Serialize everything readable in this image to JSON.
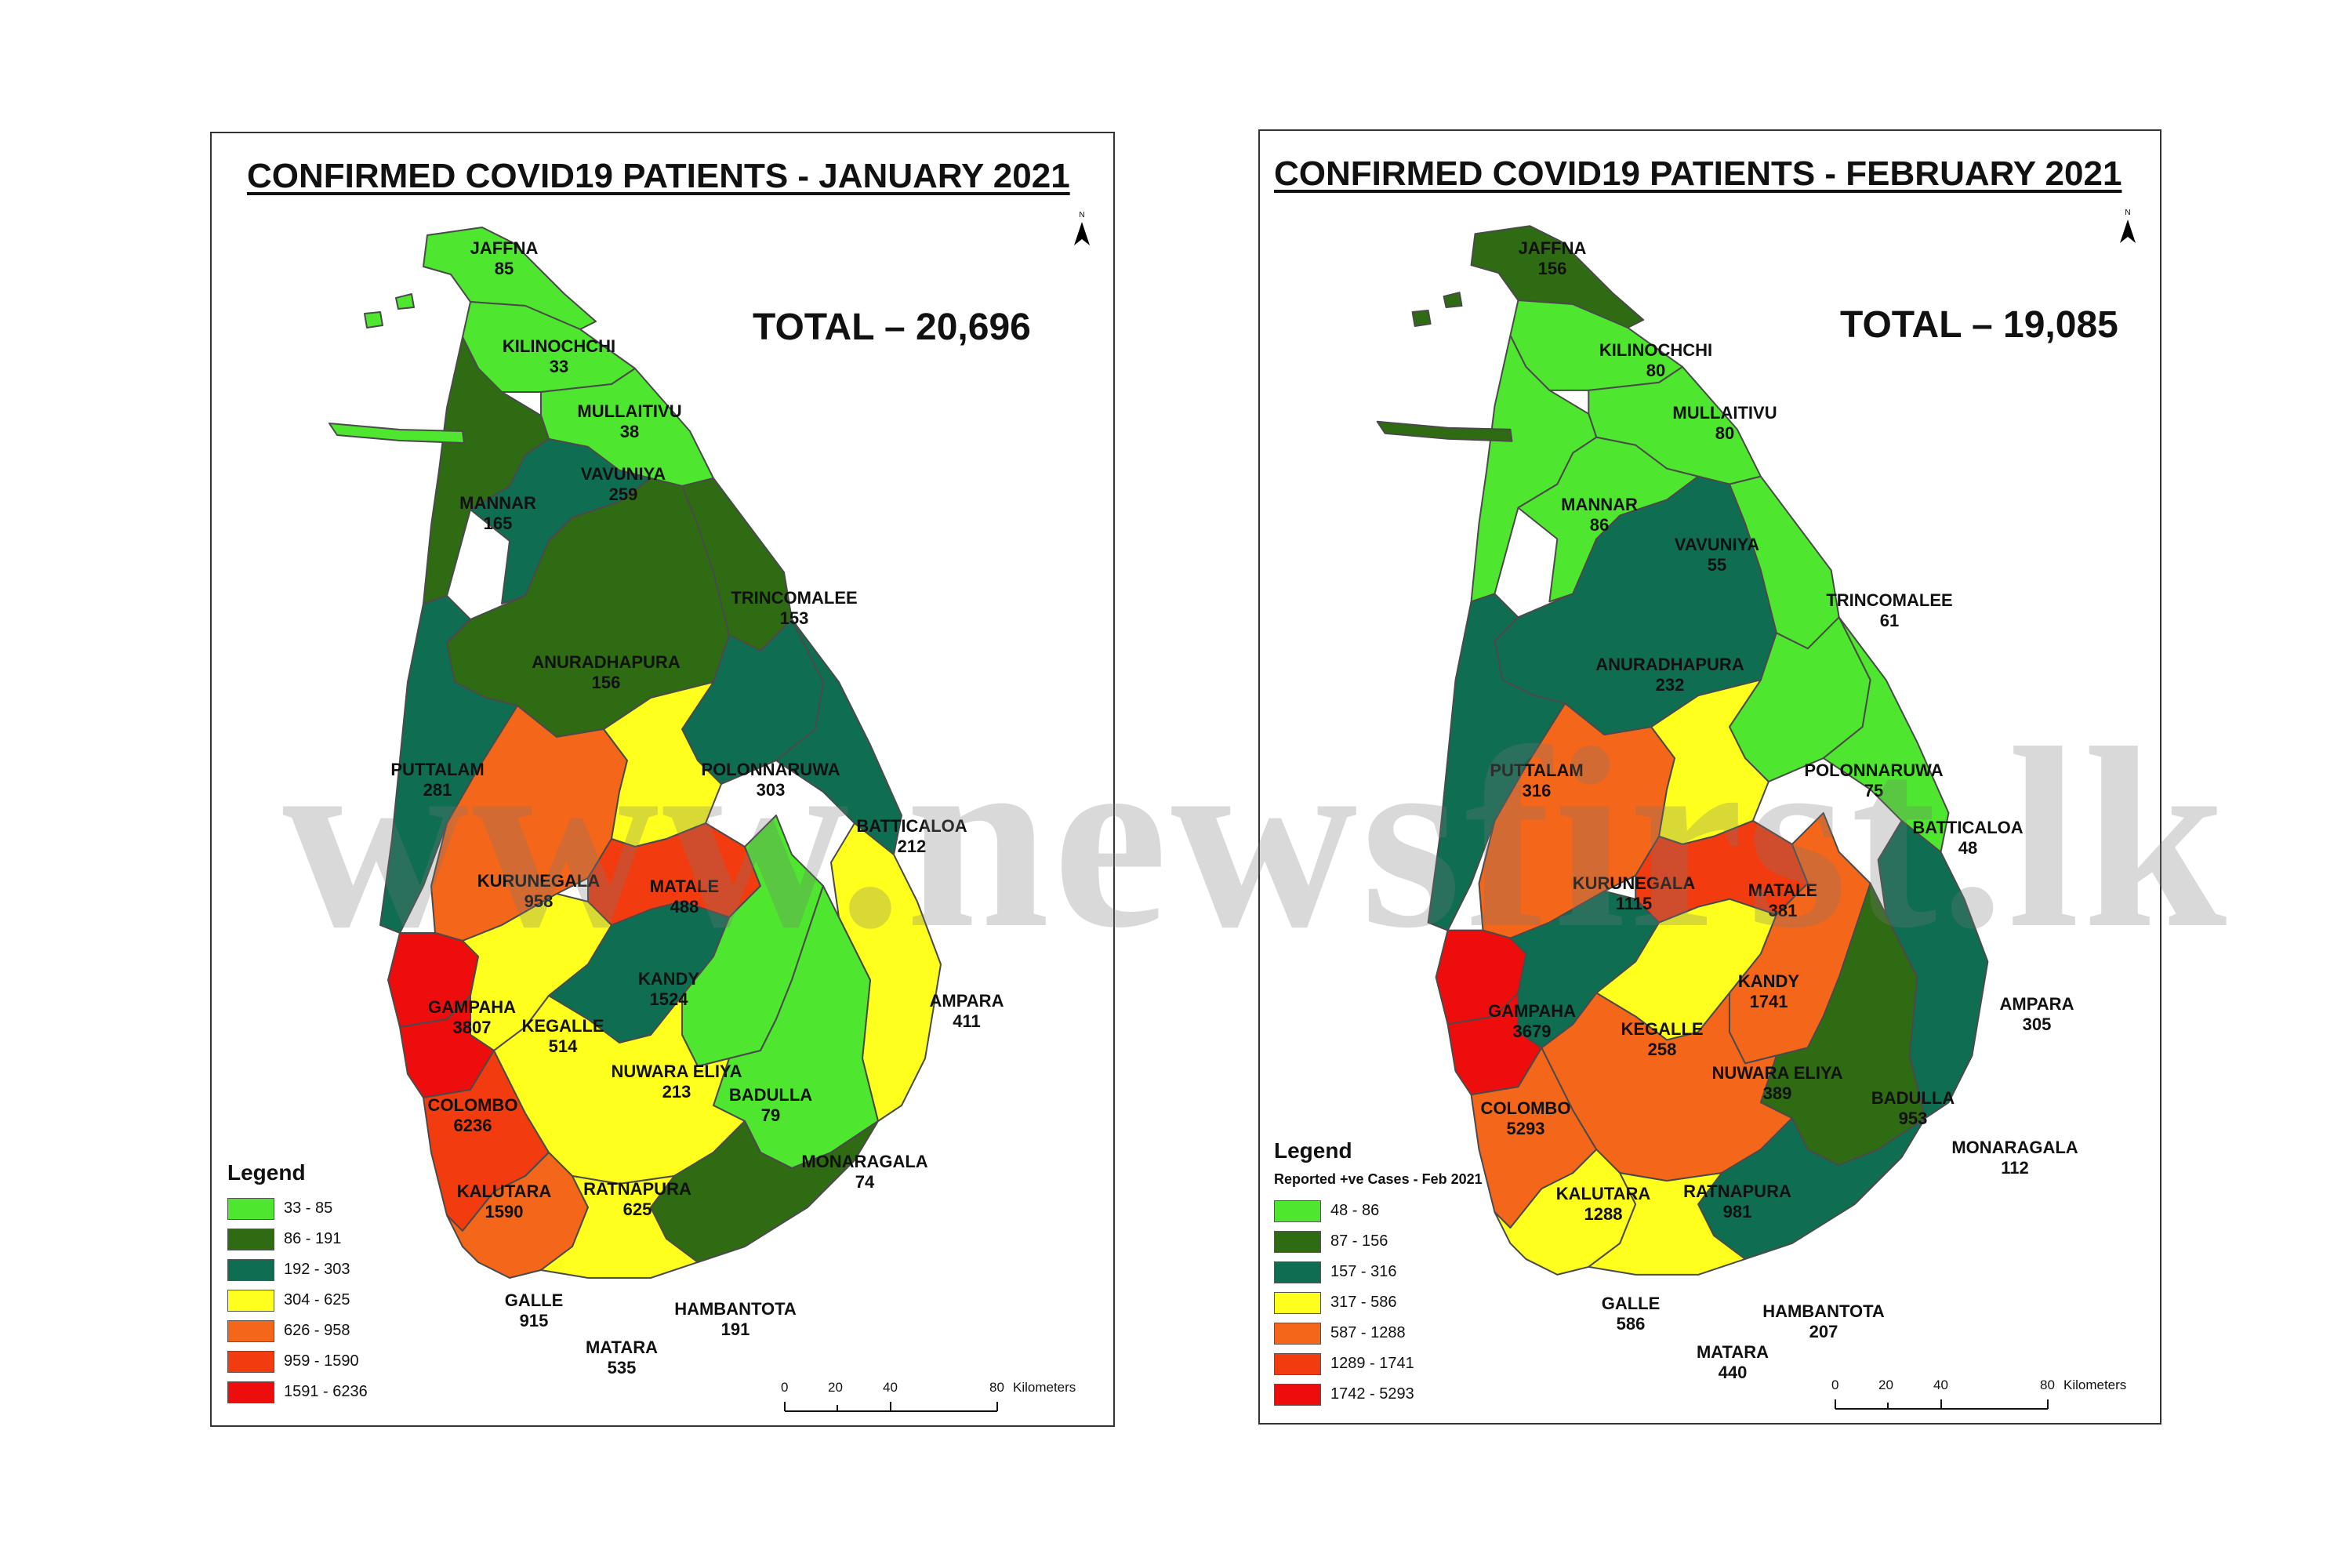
{
  "watermark": "www.newsfirst.lk",
  "maps": [
    {
      "title": "CONFIRMED COVID19 PATIENTS - JANUARY 2021",
      "total": "TOTAL – 20,696",
      "legend_title": "Legend",
      "legend_subtitle": "",
      "legend": [
        {
          "label": "33 - 85",
          "color": "#4ee62f"
        },
        {
          "label": "86 - 191",
          "color": "#2e6b12"
        },
        {
          "label": "192 - 303",
          "color": "#0f6e52"
        },
        {
          "label": "304 - 625",
          "color": "#ffff1e"
        },
        {
          "label": "626 - 958",
          "color": "#f4661a"
        },
        {
          "label": "959 - 1590",
          "color": "#f23c10"
        },
        {
          "label": "1591 - 6236",
          "color": "#ee0d0d"
        }
      ],
      "scale": {
        "ticks": [
          "0",
          "20",
          "40",
          "80"
        ],
        "unit": "Kilometers"
      },
      "districts": [
        {
          "name": "JAFFNA",
          "value": "85",
          "color": "#4ee62f"
        },
        {
          "name": "KILINOCHCHI",
          "value": "33",
          "color": "#4ee62f"
        },
        {
          "name": "MULLAITIVU",
          "value": "38",
          "color": "#4ee62f"
        },
        {
          "name": "MANNAR",
          "value": "165",
          "color": "#2e6b12"
        },
        {
          "name": "VAVUNIYA",
          "value": "259",
          "color": "#0f6e52"
        },
        {
          "name": "TRINCOMALEE",
          "value": "153",
          "color": "#2e6b12"
        },
        {
          "name": "ANURADHAPURA",
          "value": "156",
          "color": "#2e6b12"
        },
        {
          "name": "PUTTALAM",
          "value": "281",
          "color": "#0f6e52"
        },
        {
          "name": "POLONNARUWA",
          "value": "303",
          "color": "#0f6e52"
        },
        {
          "name": "BATTICALOA",
          "value": "212",
          "color": "#0f6e52"
        },
        {
          "name": "KURUNEGALA",
          "value": "958",
          "color": "#f4661a"
        },
        {
          "name": "MATALE",
          "value": "488",
          "color": "#ffff1e"
        },
        {
          "name": "KANDY",
          "value": "1524",
          "color": "#f23c10"
        },
        {
          "name": "AMPARA",
          "value": "411",
          "color": "#ffff1e"
        },
        {
          "name": "GAMPAHA",
          "value": "3807",
          "color": "#ee0d0d"
        },
        {
          "name": "KEGALLE",
          "value": "514",
          "color": "#ffff1e"
        },
        {
          "name": "NUWARA ELIYA",
          "value": "213",
          "color": "#0f6e52"
        },
        {
          "name": "BADULLA",
          "value": "79",
          "color": "#4ee62f"
        },
        {
          "name": "COLOMBO",
          "value": "6236",
          "color": "#ee0d0d"
        },
        {
          "name": "MONARAGALA",
          "value": "74",
          "color": "#4ee62f"
        },
        {
          "name": "KALUTARA",
          "value": "1590",
          "color": "#f23c10"
        },
        {
          "name": "RATNAPURA",
          "value": "625",
          "color": "#ffff1e"
        },
        {
          "name": "GALLE",
          "value": "915",
          "color": "#f4661a"
        },
        {
          "name": "HAMBANTOTA",
          "value": "191",
          "color": "#2e6b12"
        },
        {
          "name": "MATARA",
          "value": "535",
          "color": "#ffff1e"
        }
      ]
    },
    {
      "title": "CONFIRMED COVID19 PATIENTS - FEBRUARY 2021",
      "total": "TOTAL – 19,085",
      "legend_title": "Legend",
      "legend_subtitle": "Reported +ve Cases - Feb 2021",
      "legend": [
        {
          "label": "48 - 86",
          "color": "#4ee62f"
        },
        {
          "label": "87 - 156",
          "color": "#2e6b12"
        },
        {
          "label": "157 - 316",
          "color": "#0f6e52"
        },
        {
          "label": "317 - 586",
          "color": "#ffff1e"
        },
        {
          "label": "587 - 1288",
          "color": "#f4661a"
        },
        {
          "label": "1289 - 1741",
          "color": "#f23c10"
        },
        {
          "label": "1742 - 5293",
          "color": "#ee0d0d"
        }
      ],
      "scale": {
        "ticks": [
          "0",
          "20",
          "40",
          "80"
        ],
        "unit": "Kilometers"
      },
      "districts": [
        {
          "name": "JAFFNA",
          "value": "156",
          "color": "#2e6b12"
        },
        {
          "name": "KILINOCHCHI",
          "value": "80",
          "color": "#4ee62f"
        },
        {
          "name": "MULLAITIVU",
          "value": "80",
          "color": "#4ee62f"
        },
        {
          "name": "MANNAR",
          "value": "86",
          "color": "#4ee62f"
        },
        {
          "name": "VAVUNIYA",
          "value": "55",
          "color": "#4ee62f"
        },
        {
          "name": "TRINCOMALEE",
          "value": "61",
          "color": "#4ee62f"
        },
        {
          "name": "ANURADHAPURA",
          "value": "232",
          "color": "#0f6e52"
        },
        {
          "name": "PUTTALAM",
          "value": "316",
          "color": "#0f6e52"
        },
        {
          "name": "POLONNARUWA",
          "value": "75",
          "color": "#4ee62f"
        },
        {
          "name": "BATTICALOA",
          "value": "48",
          "color": "#4ee62f"
        },
        {
          "name": "KURUNEGALA",
          "value": "1115",
          "color": "#f4661a"
        },
        {
          "name": "MATALE",
          "value": "381",
          "color": "#ffff1e"
        },
        {
          "name": "KANDY",
          "value": "1741",
          "color": "#f23c10"
        },
        {
          "name": "AMPARA",
          "value": "305",
          "color": "#0f6e52"
        },
        {
          "name": "GAMPAHA",
          "value": "3679",
          "color": "#ee0d0d"
        },
        {
          "name": "KEGALLE",
          "value": "258",
          "color": "#0f6e52"
        },
        {
          "name": "NUWARA ELIYA",
          "value": "389",
          "color": "#ffff1e"
        },
        {
          "name": "BADULLA",
          "value": "953",
          "color": "#f4661a"
        },
        {
          "name": "COLOMBO",
          "value": "5293",
          "color": "#ee0d0d"
        },
        {
          "name": "MONARAGALA",
          "value": "112",
          "color": "#2e6b12"
        },
        {
          "name": "KALUTARA",
          "value": "1288",
          "color": "#f4661a"
        },
        {
          "name": "RATNAPURA",
          "value": "981",
          "color": "#f4661a"
        },
        {
          "name": "GALLE",
          "value": "586",
          "color": "#ffff1e"
        },
        {
          "name": "HAMBANTOTA",
          "value": "207",
          "color": "#0f6e52"
        },
        {
          "name": "MATARA",
          "value": "440",
          "color": "#ffff1e"
        }
      ]
    }
  ]
}
